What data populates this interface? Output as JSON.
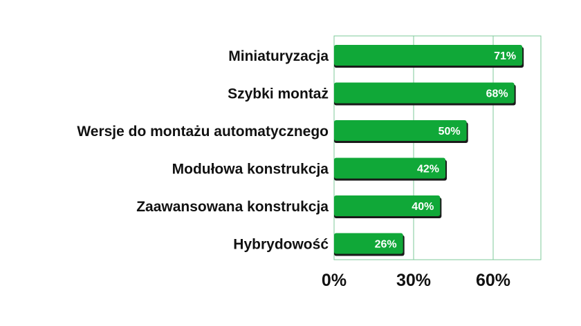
{
  "chart_data": {
    "type": "bar",
    "orientation": "horizontal",
    "categories": [
      "Miniaturyzacja",
      "Szybki montaż",
      "Wersje do montażu automatycznego",
      "Modułowa konstrukcja",
      "Zaawansowana konstrukcja",
      "Hybrydowość"
    ],
    "values": [
      71,
      68,
      50,
      42,
      40,
      26
    ],
    "value_labels": [
      "71%",
      "68%",
      "50%",
      "42%",
      "40%",
      "26%"
    ],
    "xlim": [
      0,
      78
    ],
    "xticks": [
      0,
      30,
      60
    ],
    "xtick_labels": [
      "0%",
      "30%",
      "60%"
    ],
    "grid": "vertical lines at 30% and 60%",
    "legend": "none",
    "title": "",
    "xlabel": "",
    "ylabel": ""
  },
  "colors": {
    "bar": "#10a838",
    "bar_shadow": "#1a1a1a",
    "frame": "#7cc99a",
    "gridline": "#7cc99a",
    "text": "#111111",
    "value_text": "#ffffff"
  }
}
